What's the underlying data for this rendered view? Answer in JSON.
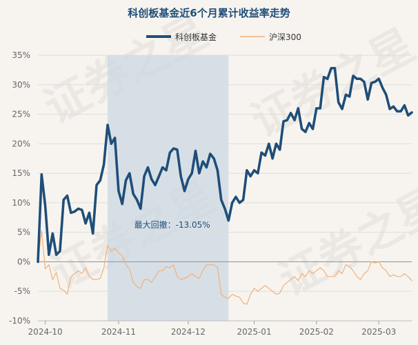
{
  "chart_data": {
    "type": "line",
    "title": "科创板基金近6个月累计收益率走势",
    "xlabel": "",
    "ylabel": "",
    "ylim": [
      -10,
      35
    ],
    "ytick_labels": [
      "35%",
      "30%",
      "25%",
      "20%",
      "15%",
      "10%",
      "5%",
      "0%",
      "-5%",
      "-10%"
    ],
    "xtick_labels": [
      "2024-10",
      "2024-11",
      "2024-12",
      "2025-01",
      "2025-02",
      "2025-03"
    ],
    "grid": "horizontal",
    "legend": "top-center",
    "annotation": "最大回撤：-13.05%",
    "watermark": "证券之星",
    "colors": {
      "fund": "#1f4e79",
      "index": "#f2b07a",
      "drawdown": "#c9d6e3",
      "zero": "#999999"
    },
    "series": [
      {
        "name": "科创板基金",
        "values": [
          0.0,
          14.8,
          9.5,
          1.2,
          4.8,
          1.2,
          1.8,
          10.5,
          11.2,
          8.3,
          8.5,
          9.0,
          8.8,
          6.5,
          8.3,
          4.8,
          13.0,
          13.8,
          16.5,
          23.2,
          20.0,
          21.0,
          12.0,
          9.8,
          13.8,
          15.0,
          11.5,
          10.5,
          9.0,
          14.5,
          16.0,
          14.0,
          13.0,
          14.5,
          16.0,
          15.5,
          18.5,
          19.2,
          19.0,
          14.5,
          12.0,
          14.0,
          15.0,
          18.8,
          15.0,
          17.0,
          16.0,
          18.3,
          17.5,
          15.5,
          10.5,
          9.0,
          7.0,
          10.0,
          11.0,
          10.0,
          10.5,
          15.5,
          14.5,
          15.5,
          15.0,
          18.5,
          18.0,
          20.0,
          17.5,
          20.0,
          19.0,
          23.8,
          24.0,
          25.2,
          24.0,
          26.0,
          22.5,
          22.0,
          23.5,
          22.5,
          26.0,
          26.0,
          31.3,
          31.0,
          32.8,
          32.8,
          27.0,
          25.9,
          28.3,
          28.0,
          31.5,
          31.0,
          31.0,
          30.5,
          27.5,
          30.3,
          30.5,
          31.0,
          29.5,
          28.3,
          25.9,
          26.3,
          25.5,
          25.5,
          26.5,
          24.8,
          25.3
        ]
      },
      {
        "name": "沪深300",
        "values": [
          0.0,
          5.3,
          -1.2,
          -0.5,
          -3.0,
          -1.8,
          -4.5,
          -4.8,
          -5.5,
          -2.5,
          -2.0,
          -1.5,
          -2.0,
          -1.0,
          -2.5,
          -3.0,
          -3.0,
          -2.8,
          -1.0,
          2.8,
          1.8,
          2.3,
          1.5,
          1.0,
          -0.5,
          -1.2,
          -3.5,
          -4.2,
          -4.5,
          -3.0,
          -3.0,
          -3.5,
          -2.5,
          -1.5,
          -1.5,
          -0.8,
          -1.0,
          -0.5,
          -2.5,
          -3.0,
          -2.8,
          -2.5,
          -2.0,
          -2.5,
          -2.8,
          -1.5,
          -0.5,
          -0.5,
          -0.5,
          -1.0,
          -5.5,
          -6.0,
          -6.2,
          -5.5,
          -5.8,
          -6.0,
          -7.0,
          -7.2,
          -5.5,
          -4.5,
          -5.0,
          -4.5,
          -4.0,
          -4.5,
          -5.0,
          -5.5,
          -5.3,
          -4.0,
          -3.5,
          -3.0,
          -2.5,
          -3.2,
          -2.0,
          -2.5,
          -1.5,
          -2.0,
          -1.5,
          -1.0,
          -1.5,
          -2.5,
          -2.5,
          -2.5,
          -1.5,
          -2.0,
          -0.5,
          -0.8,
          -1.5,
          -2.5,
          -3.0,
          -2.0,
          -1.5,
          0.0,
          -0.2,
          0.0,
          -1.0,
          -1.5,
          -2.5,
          -2.2,
          -2.5,
          -2.5,
          -2.0,
          -2.5,
          -3.2
        ]
      }
    ]
  }
}
